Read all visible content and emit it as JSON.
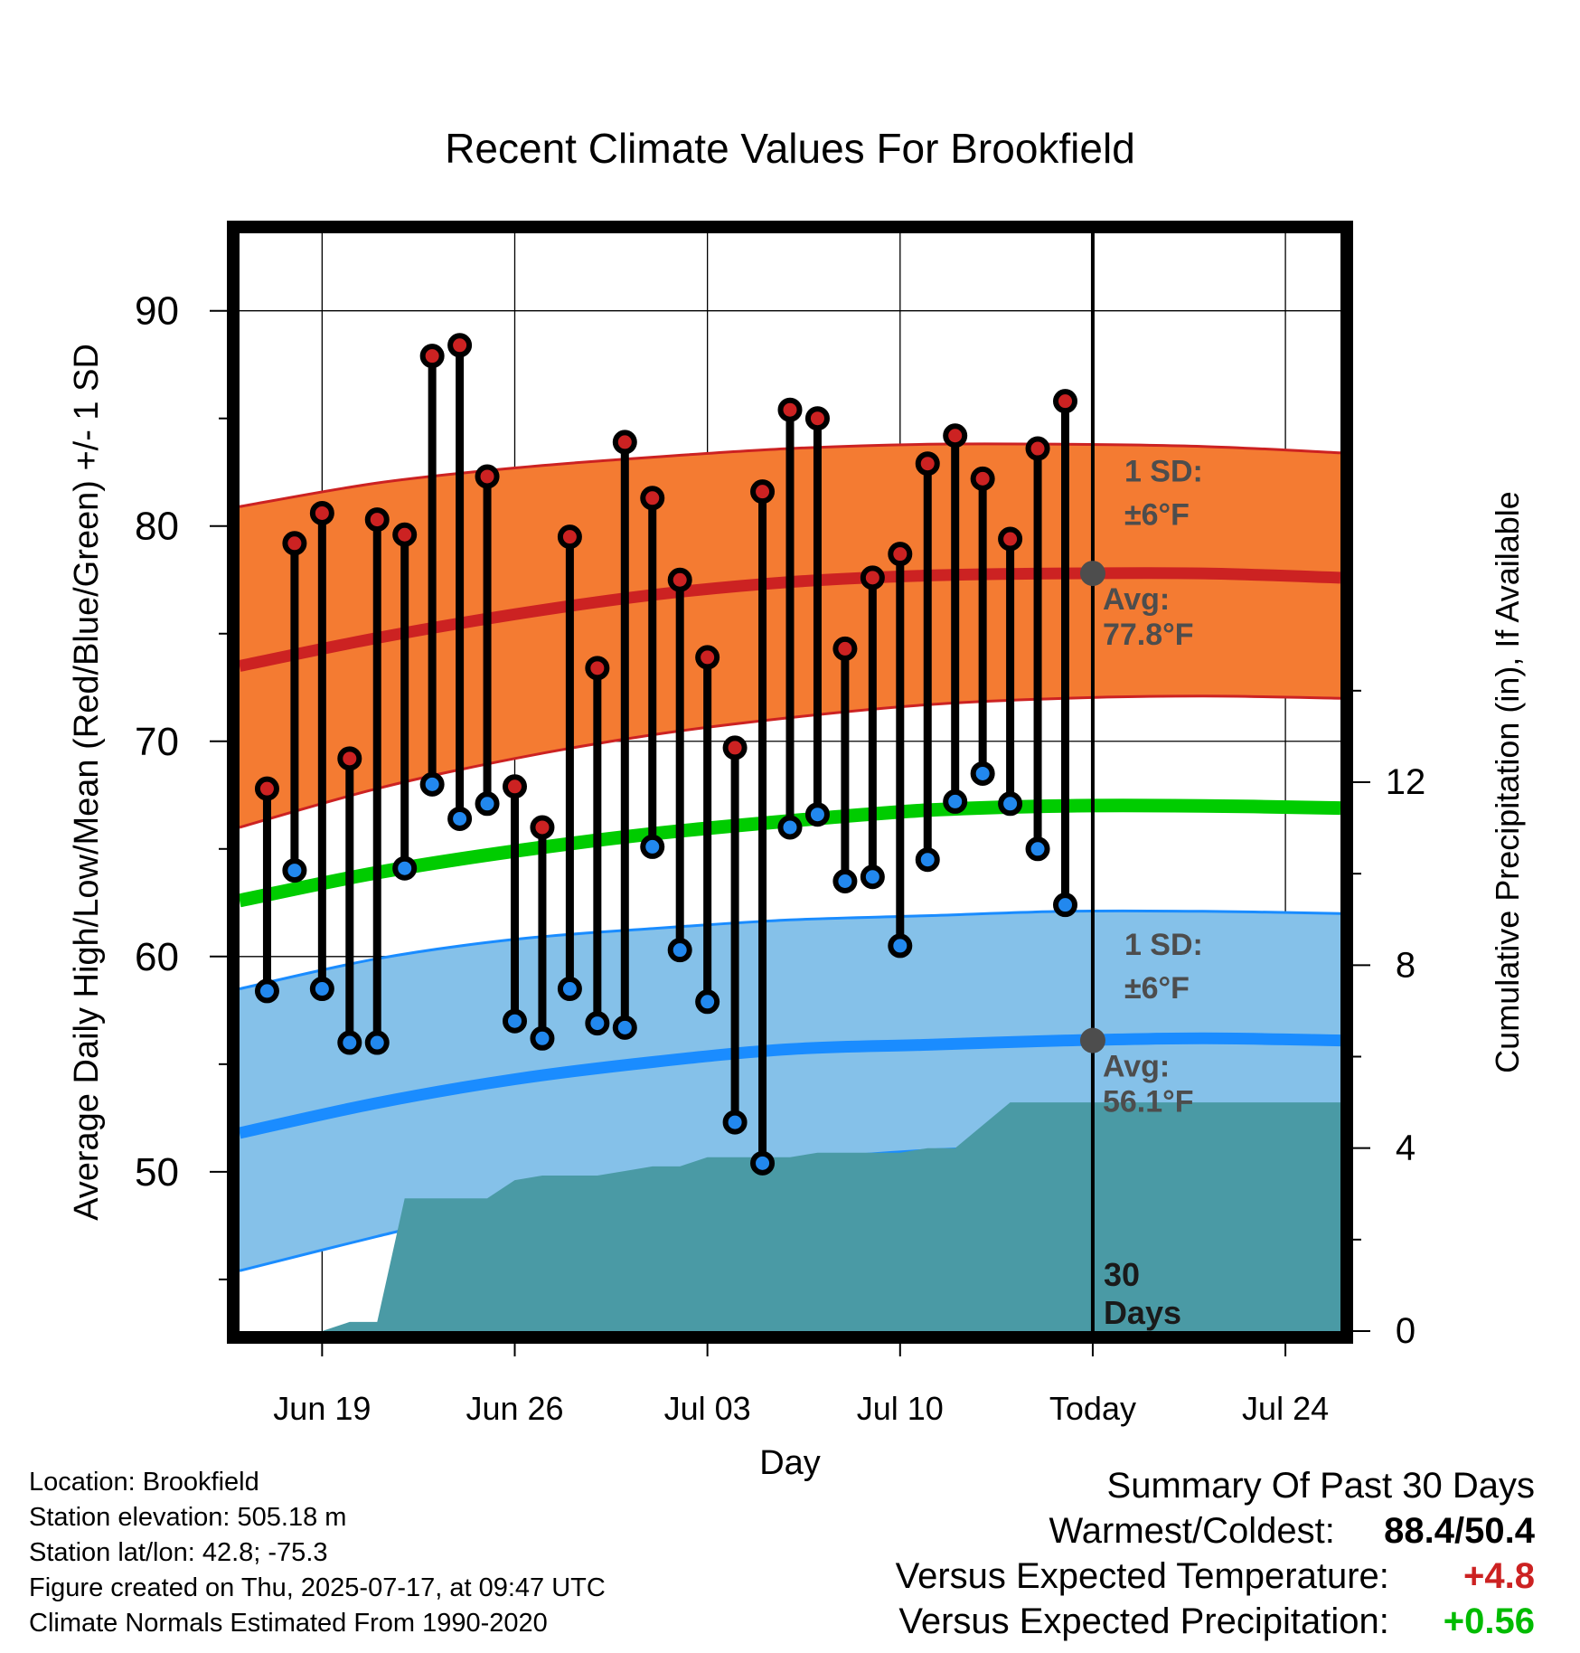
{
  "chart_data": {
    "type": "line",
    "title": "Recent Climate Values For Brookfield",
    "xlabel": "Day",
    "ylabel": "Average Daily High/Low/Mean (Red/Blue/Green) +/- 1 SD",
    "y2label": "Cumulative Precipitation (in), If Available",
    "xlim": [
      "Jun 16",
      "Jul 26"
    ],
    "ylim": [
      42.6,
      93.6
    ],
    "y2lim": [
      0,
      24
    ],
    "x_ticks": [
      {
        "date": "Jun 19",
        "label": "Jun 19"
      },
      {
        "date": "Jun 26",
        "label": "Jun 26"
      },
      {
        "date": "Jul 03",
        "label": "Jul 03"
      },
      {
        "date": "Jul 10",
        "label": "Jul 10"
      },
      {
        "date": "Jul 17",
        "label": "Today"
      },
      {
        "date": "Jul 24",
        "label": "Jul 24"
      }
    ],
    "y_ticks": [
      50,
      60,
      70,
      80,
      90
    ],
    "y2_ticks": [
      0,
      4,
      8,
      12
    ],
    "today": "Jul 17",
    "dates": [
      "Jun 17",
      "Jun 18",
      "Jun 19",
      "Jun 20",
      "Jun 21",
      "Jun 22",
      "Jun 23",
      "Jun 24",
      "Jun 25",
      "Jun 26",
      "Jun 27",
      "Jun 28",
      "Jun 29",
      "Jun 30",
      "Jul 01",
      "Jul 02",
      "Jul 03",
      "Jul 04",
      "Jul 05",
      "Jul 06",
      "Jul 07",
      "Jul 08",
      "Jul 09",
      "Jul 10",
      "Jul 11",
      "Jul 12",
      "Jul 13",
      "Jul 14",
      "Jul 15",
      "Jul 16"
    ],
    "series": [
      {
        "name": "High",
        "color": "#cc2222",
        "values": [
          67.8,
          79.2,
          80.6,
          69.2,
          80.3,
          79.6,
          87.9,
          88.4,
          82.3,
          67.9,
          66.0,
          79.5,
          73.4,
          83.9,
          81.3,
          77.5,
          73.9,
          69.7,
          81.6,
          85.4,
          85.0,
          74.3,
          77.6,
          78.7,
          82.9,
          84.2,
          82.2,
          79.4,
          83.6,
          85.8
        ]
      },
      {
        "name": "Low",
        "color": "#2288ee",
        "values": [
          58.4,
          64.0,
          58.5,
          56.0,
          56.0,
          64.1,
          68.0,
          66.4,
          67.1,
          57.0,
          56.2,
          58.5,
          56.9,
          56.7,
          65.1,
          60.3,
          57.9,
          52.3,
          50.4,
          66.0,
          66.6,
          63.5,
          63.7,
          60.5,
          64.5,
          67.2,
          68.5,
          67.1,
          65.0,
          62.4
        ]
      }
    ],
    "normals": {
      "dates": [
        "Jun 16",
        "Jun 21",
        "Jun 26",
        "Jul 01",
        "Jul 06",
        "Jul 11",
        "Jul 16",
        "Jul 21",
        "Jul 26"
      ],
      "high_avg": [
        73.5,
        74.8,
        75.9,
        76.8,
        77.4,
        77.7,
        77.8,
        77.8,
        77.6
      ],
      "high_upper": [
        80.9,
        82.0,
        82.7,
        83.2,
        83.6,
        83.8,
        83.8,
        83.7,
        83.4
      ],
      "high_lower": [
        66.0,
        67.8,
        69.2,
        70.3,
        71.1,
        71.7,
        72.0,
        72.1,
        72.0
      ],
      "mean": [
        62.6,
        63.9,
        64.9,
        65.7,
        66.3,
        66.8,
        67.0,
        67.0,
        66.9
      ],
      "low_avg": [
        51.8,
        53.2,
        54.3,
        55.1,
        55.7,
        55.9,
        56.1,
        56.2,
        56.1
      ],
      "low_upper": [
        58.5,
        59.9,
        60.8,
        61.3,
        61.7,
        61.9,
        62.1,
        62.1,
        62.0
      ],
      "low_lower": [
        45.4,
        47.0,
        48.5,
        49.7,
        50.5,
        51.0,
        51.2,
        51.2,
        51.1
      ]
    },
    "precip_cumulative": {
      "dates": [
        "Jun 16",
        "Jun 19",
        "Jun 20",
        "Jun 21",
        "Jun 22",
        "Jun 23",
        "Jun 24",
        "Jun 25",
        "Jun 26",
        "Jun 27",
        "Jun 28",
        "Jun 29",
        "Jun 30",
        "Jul 01",
        "Jul 02",
        "Jul 03",
        "Jul 04",
        "Jul 05",
        "Jul 06",
        "Jul 07",
        "Jul 08",
        "Jul 09",
        "Jul 10",
        "Jul 11",
        "Jul 12",
        "Jul 13",
        "Jul 14",
        "Jul 15",
        "Jul 16",
        "Jul 26"
      ],
      "values": [
        0.0,
        0.0,
        0.2,
        0.2,
        2.9,
        2.9,
        2.9,
        2.9,
        3.3,
        3.4,
        3.4,
        3.4,
        3.5,
        3.6,
        3.6,
        3.8,
        3.8,
        3.8,
        3.8,
        3.9,
        3.9,
        3.9,
        3.9,
        4.0,
        4.0,
        4.5,
        5.0,
        5.0,
        5.0,
        5.0
      ]
    },
    "annotations": {
      "high_sd": "1 SD:",
      "high_sd_val": "±6°F",
      "high_avg_label": "Avg:",
      "high_avg_val": "77.8°F",
      "low_sd": "1 SD:",
      "low_sd_val": "±6°F",
      "low_avg_label": "Avg:",
      "low_avg_val": "56.1°F",
      "days_num": "30",
      "days_word": "Days"
    },
    "colors": {
      "high_band": "#f47b32",
      "high_line": "#cc2222",
      "low_band": "#85c1e9",
      "low_line": "#1a8cff",
      "mean_line": "#00cc00",
      "precip_fill": "#4a9aa5",
      "annotation": "#4d4d4d"
    }
  },
  "info": {
    "location": "Location: Brookfield",
    "elevation": "Station elevation: 505.18 m",
    "latlon": "Station lat/lon: 42.8; -75.3",
    "created": "Figure created on Thu, 2025-07-17, at 09:47 UTC",
    "normals": "Climate Normals Estimated From 1990-2020"
  },
  "summary": {
    "title": "Summary Of Past 30 Days",
    "warm_cold_label": "Warmest/Coldest:",
    "warm_cold_value": "88.4/50.4",
    "temp_label": "Versus Expected Temperature:",
    "temp_value": "+4.8",
    "temp_color": "#cc2222",
    "precip_label": "Versus Expected Precipitation:",
    "precip_value": "+0.56",
    "precip_color": "#00bb00"
  }
}
